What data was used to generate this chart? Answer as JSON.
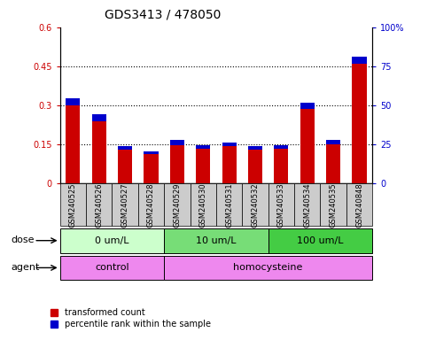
{
  "title": "GDS3413 / 478050",
  "samples": [
    "GSM240525",
    "GSM240526",
    "GSM240527",
    "GSM240528",
    "GSM240529",
    "GSM240530",
    "GSM240531",
    "GSM240532",
    "GSM240533",
    "GSM240534",
    "GSM240535",
    "GSM240848"
  ],
  "red_values": [
    0.3,
    0.24,
    0.13,
    0.115,
    0.148,
    0.132,
    0.143,
    0.13,
    0.132,
    0.285,
    0.152,
    0.46
  ],
  "blue_values": [
    0.026,
    0.026,
    0.013,
    0.01,
    0.018,
    0.016,
    0.016,
    0.014,
    0.014,
    0.026,
    0.016,
    0.028
  ],
  "ylim_left": [
    0,
    0.6
  ],
  "ylim_right": [
    0,
    100
  ],
  "yticks_left": [
    0,
    0.15,
    0.3,
    0.45,
    0.6
  ],
  "yticks_right": [
    0,
    25,
    50,
    75,
    100
  ],
  "ytick_labels_left": [
    "0",
    "0.15",
    "0.3",
    "0.45",
    "0.6"
  ],
  "ytick_labels_right": [
    "0",
    "25",
    "50",
    "75",
    "100%"
  ],
  "hlines": [
    0.15,
    0.3,
    0.45
  ],
  "dose_groups": [
    {
      "label": "0 um/L",
      "start": 0,
      "end": 4,
      "color": "#ccffcc"
    },
    {
      "label": "10 um/L",
      "start": 4,
      "end": 8,
      "color": "#77dd77"
    },
    {
      "label": "100 um/L",
      "start": 8,
      "end": 12,
      "color": "#44cc44"
    }
  ],
  "agent_groups": [
    {
      "label": "control",
      "start": 0,
      "end": 4,
      "color": "#ee88ee"
    },
    {
      "label": "homocysteine",
      "start": 4,
      "end": 12,
      "color": "#ee88ee"
    }
  ],
  "bar_color_red": "#cc0000",
  "bar_color_blue": "#0000cc",
  "bar_width": 0.55,
  "legend_red": "transformed count",
  "legend_blue": "percentile rank within the sample",
  "dose_label": "dose",
  "agent_label": "agent",
  "grid_color": "#000000",
  "bg_color": "#ffffff",
  "plot_bg_color": "#ffffff",
  "xtick_bg_color": "#cccccc",
  "tick_label_color_left": "#cc0000",
  "tick_label_color_right": "#0000cc",
  "title_fontsize": 10,
  "tick_fontsize": 7,
  "sample_fontsize": 6
}
